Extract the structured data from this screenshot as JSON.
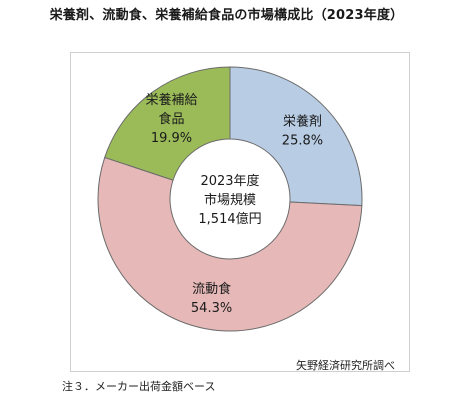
{
  "title": "栄養剤、流動食、栄養補給食品の市場構成比（2023年度）",
  "source": "矢野経済研究所調べ",
  "note": "注３．メーカー出荷金額ベース",
  "chart_data": {
    "type": "pie",
    "donut": true,
    "center_label": [
      "2023年度",
      "市場規模",
      "1,514億円"
    ],
    "slices": [
      {
        "label": "栄養剤",
        "value": 25.8,
        "display": "25.8%",
        "color": "#b8cce4"
      },
      {
        "label": "流動食",
        "value": 54.3,
        "display": "54.3%",
        "color": "#e6b9b8"
      },
      {
        "label": "栄養補給食品",
        "label_lines": [
          "栄養補給",
          "食品"
        ],
        "value": 19.9,
        "display": "19.9%",
        "color": "#9bbb59"
      }
    ]
  }
}
